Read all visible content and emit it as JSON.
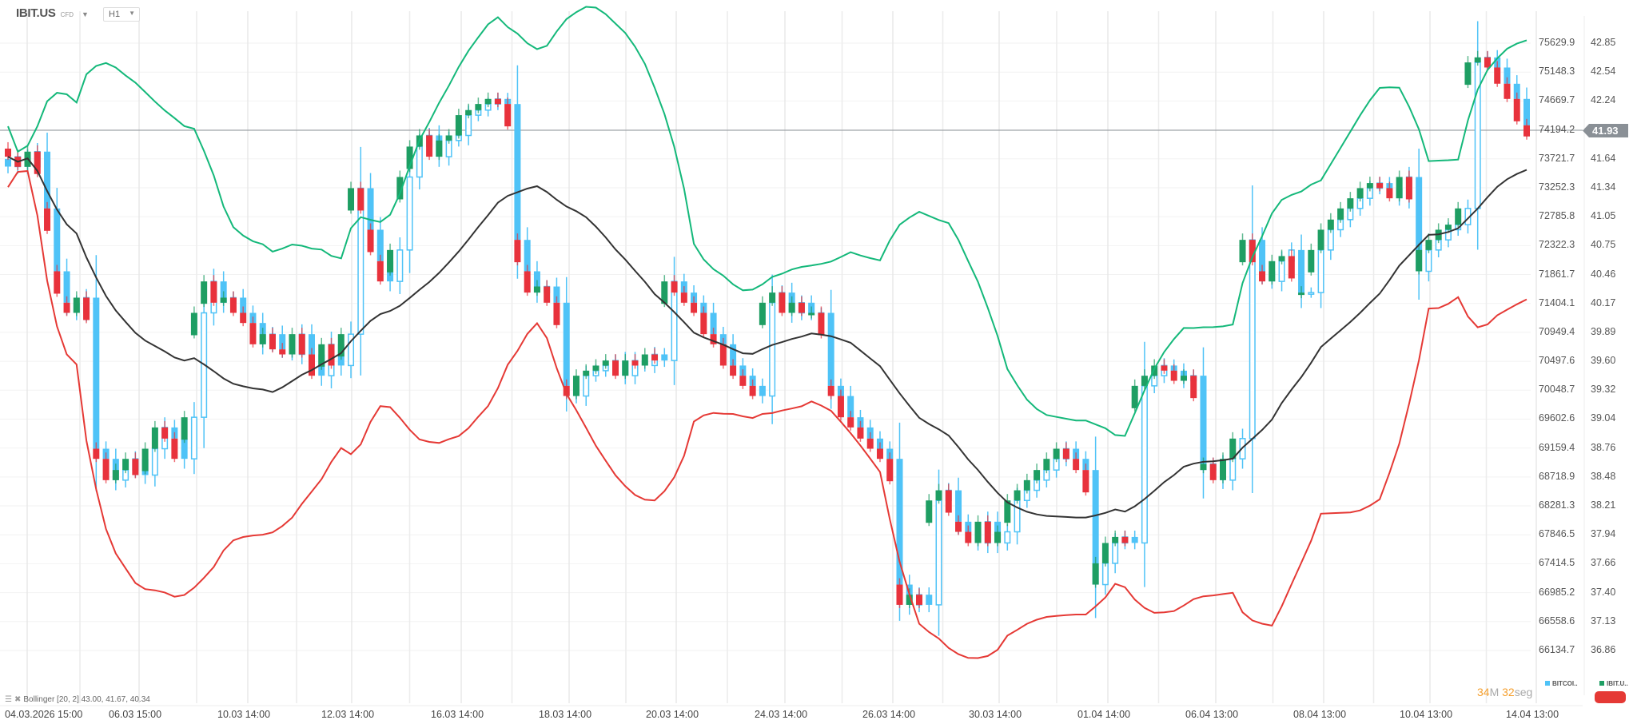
{
  "header": {
    "symbol": "IBIT.US",
    "symbol_type": "CFD",
    "timeframe": "H1"
  },
  "axis": {
    "btc_labels": [
      "75629.9",
      "75148.3",
      "74669.7",
      "74194.2",
      "73721.7",
      "73252.3",
      "72785.8",
      "72322.3",
      "71861.7",
      "71404.1",
      "70949.4",
      "70497.6",
      "70048.7",
      "69602.6",
      "69159.4",
      "68718.9",
      "68281.3",
      "67846.5",
      "67414.5",
      "66985.2",
      "66558.6",
      "66134.7"
    ],
    "ibit_labels": [
      "42.85",
      "42.54",
      "42.24",
      "41.93",
      "41.64",
      "41.34",
      "41.05",
      "40.75",
      "40.46",
      "40.17",
      "39.89",
      "39.60",
      "39.32",
      "39.04",
      "38.76",
      "38.48",
      "38.21",
      "37.94",
      "37.66",
      "37.40",
      "37.13",
      "36.86"
    ],
    "time_labels": [
      "04.03.2026 15:00",
      "06.03 15:00",
      "10.03 14:00",
      "12.03 14:00",
      "16.03 14:00",
      "18.03 14:00",
      "20.03 14:00",
      "24.03 14:00",
      "26.03 14:00",
      "30.03 14:00",
      "01.04 14:00",
      "06.04 13:00",
      "08.04 13:00",
      "10.04 13:00",
      "14.04 13:00"
    ],
    "current_price": "41.93"
  },
  "indicator": {
    "label": "Bollinger [20, 2] 43.00, 41.67, 40.34"
  },
  "countdown": {
    "minutes": "34",
    "minutes_unit": "M",
    "seconds": "32",
    "seconds_unit": "seg"
  },
  "legend": [
    {
      "label": "BITCOI..",
      "color": "#4fc3f7"
    },
    {
      "label": "IBIT.U..",
      "color": "#1e9e63"
    }
  ],
  "colors": {
    "ibit_up": "#1e9e63",
    "ibit_down": "#e8323c",
    "btc": "#4fc3f7",
    "bb_upper": "#14b87a",
    "bb_middle": "#333333",
    "bb_lower": "#e53935",
    "price_line": "#8a9096"
  },
  "chart_data": {
    "type": "candlestick",
    "bollinger": {
      "period": 20,
      "stddev": 2
    },
    "ibit_range": [
      36.86,
      42.85
    ],
    "btc_range": [
      66134.7,
      75629.9
    ],
    "grid": true,
    "ibit_close": [
      41.73,
      41.63,
      41.78,
      41.22,
      40.6,
      40.29,
      40.19,
      40.34,
      38.85,
      38.75,
      38.54,
      38.64,
      38.75,
      38.59,
      38.85,
      39.06,
      38.95,
      38.75,
      39.16,
      40.19,
      40.5,
      40.29,
      40.34,
      40.19,
      40.09,
      39.88,
      39.98,
      39.83,
      39.78,
      39.98,
      39.78,
      39.57,
      39.88,
      39.67,
      39.98,
      41.42,
      41.01,
      40.7,
      40.5,
      40.81,
      41.53,
      41.83,
      41.94,
      41.73,
      41.89,
      41.94,
      42.14,
      42.19,
      42.25,
      42.3,
      42.25,
      40.91,
      40.6,
      40.39,
      40.45,
      40.29,
      39.47,
      39.37,
      39.57,
      39.62,
      39.67,
      39.72,
      39.57,
      39.72,
      39.67,
      39.78,
      39.72,
      40.5,
      40.39,
      40.29,
      40.19,
      39.98,
      39.88,
      39.67,
      39.57,
      39.47,
      39.37,
      40.29,
      40.39,
      40.19,
      40.29,
      40.19,
      40.19,
      39.47,
      39.37,
      39.16,
      39.06,
      38.95,
      38.85,
      38.75,
      37.51,
      37.31,
      37.41,
      37.31,
      38.34,
      38.44,
      38.13,
      38.03,
      37.92,
      38.13,
      37.92,
      38.03,
      38.34,
      38.44,
      38.54,
      38.64,
      38.75,
      38.85,
      38.75,
      38.64,
      37.51,
      37.72,
      37.92,
      37.98,
      37.92,
      39.47,
      39.57,
      39.67,
      39.62,
      39.52,
      39.57,
      38.64,
      38.7,
      38.54,
      38.75,
      38.95,
      40.91,
      40.6,
      40.5,
      40.7,
      40.75,
      40.39,
      40.39,
      40.81,
      41.01,
      41.11,
      41.22,
      41.32,
      41.42,
      41.47,
      41.42,
      41.32,
      41.53,
      40.6,
      40.81,
      40.91,
      41.01,
      41.06,
      41.22,
      42.66,
      42.71,
      42.61,
      42.45,
      42.3,
      42.04,
      41.93
    ],
    "btc_close": [
      73700,
      73854,
      73697,
      73934,
      73046,
      72063,
      71572,
      71413,
      71651,
      69289,
      69131,
      68798,
      68956,
      69131,
      68877,
      69289,
      69622,
      69448,
      69131,
      69781,
      71413,
      71905,
      71572,
      71651,
      71413,
      71255,
      70922,
      71080,
      70843,
      70764,
      71080,
      70764,
      70431,
      70922,
      70590,
      71080,
      73362,
      72713,
      72222,
      71905,
      72396,
      73537,
      74013,
      74187,
      73854,
      74108,
      74187,
      74504,
      74583,
      74678,
      74758,
      74678,
      72554,
      72063,
      71730,
      71825,
      71572,
      70272,
      70113,
      70431,
      70509,
      70590,
      70668,
      70431,
      70668,
      70590,
      70764,
      70668,
      71905,
      71730,
      71572,
      71413,
      71080,
      70922,
      70590,
      70431,
      70272,
      70113,
      71572,
      71730,
      71413,
      71572,
      71413,
      71413,
      70272,
      70113,
      69781,
      69622,
      69448,
      69289,
      69131,
      67165,
      66848,
      67007,
      66848,
      68480,
      68639,
      68148,
      67990,
      67816,
      68148,
      67816,
      67990,
      68480,
      68639,
      68798,
      68956,
      69131,
      69289,
      69131,
      68956,
      67165,
      67498,
      67816,
      67910,
      67816,
      70272,
      70431,
      70590,
      70509,
      70351,
      70431,
      68956,
      69052,
      68798,
      69131,
      69448,
      72554,
      72063,
      71905,
      72222,
      72396,
      71730,
      71730,
      72396,
      72713,
      72871,
      73046,
      73204,
      73362,
      73442,
      73362,
      73204,
      73537,
      72063,
      72396,
      72554,
      72713,
      72792,
      73046,
      75328,
      75407,
      75249,
      74995,
      74758,
      74345
    ]
  }
}
